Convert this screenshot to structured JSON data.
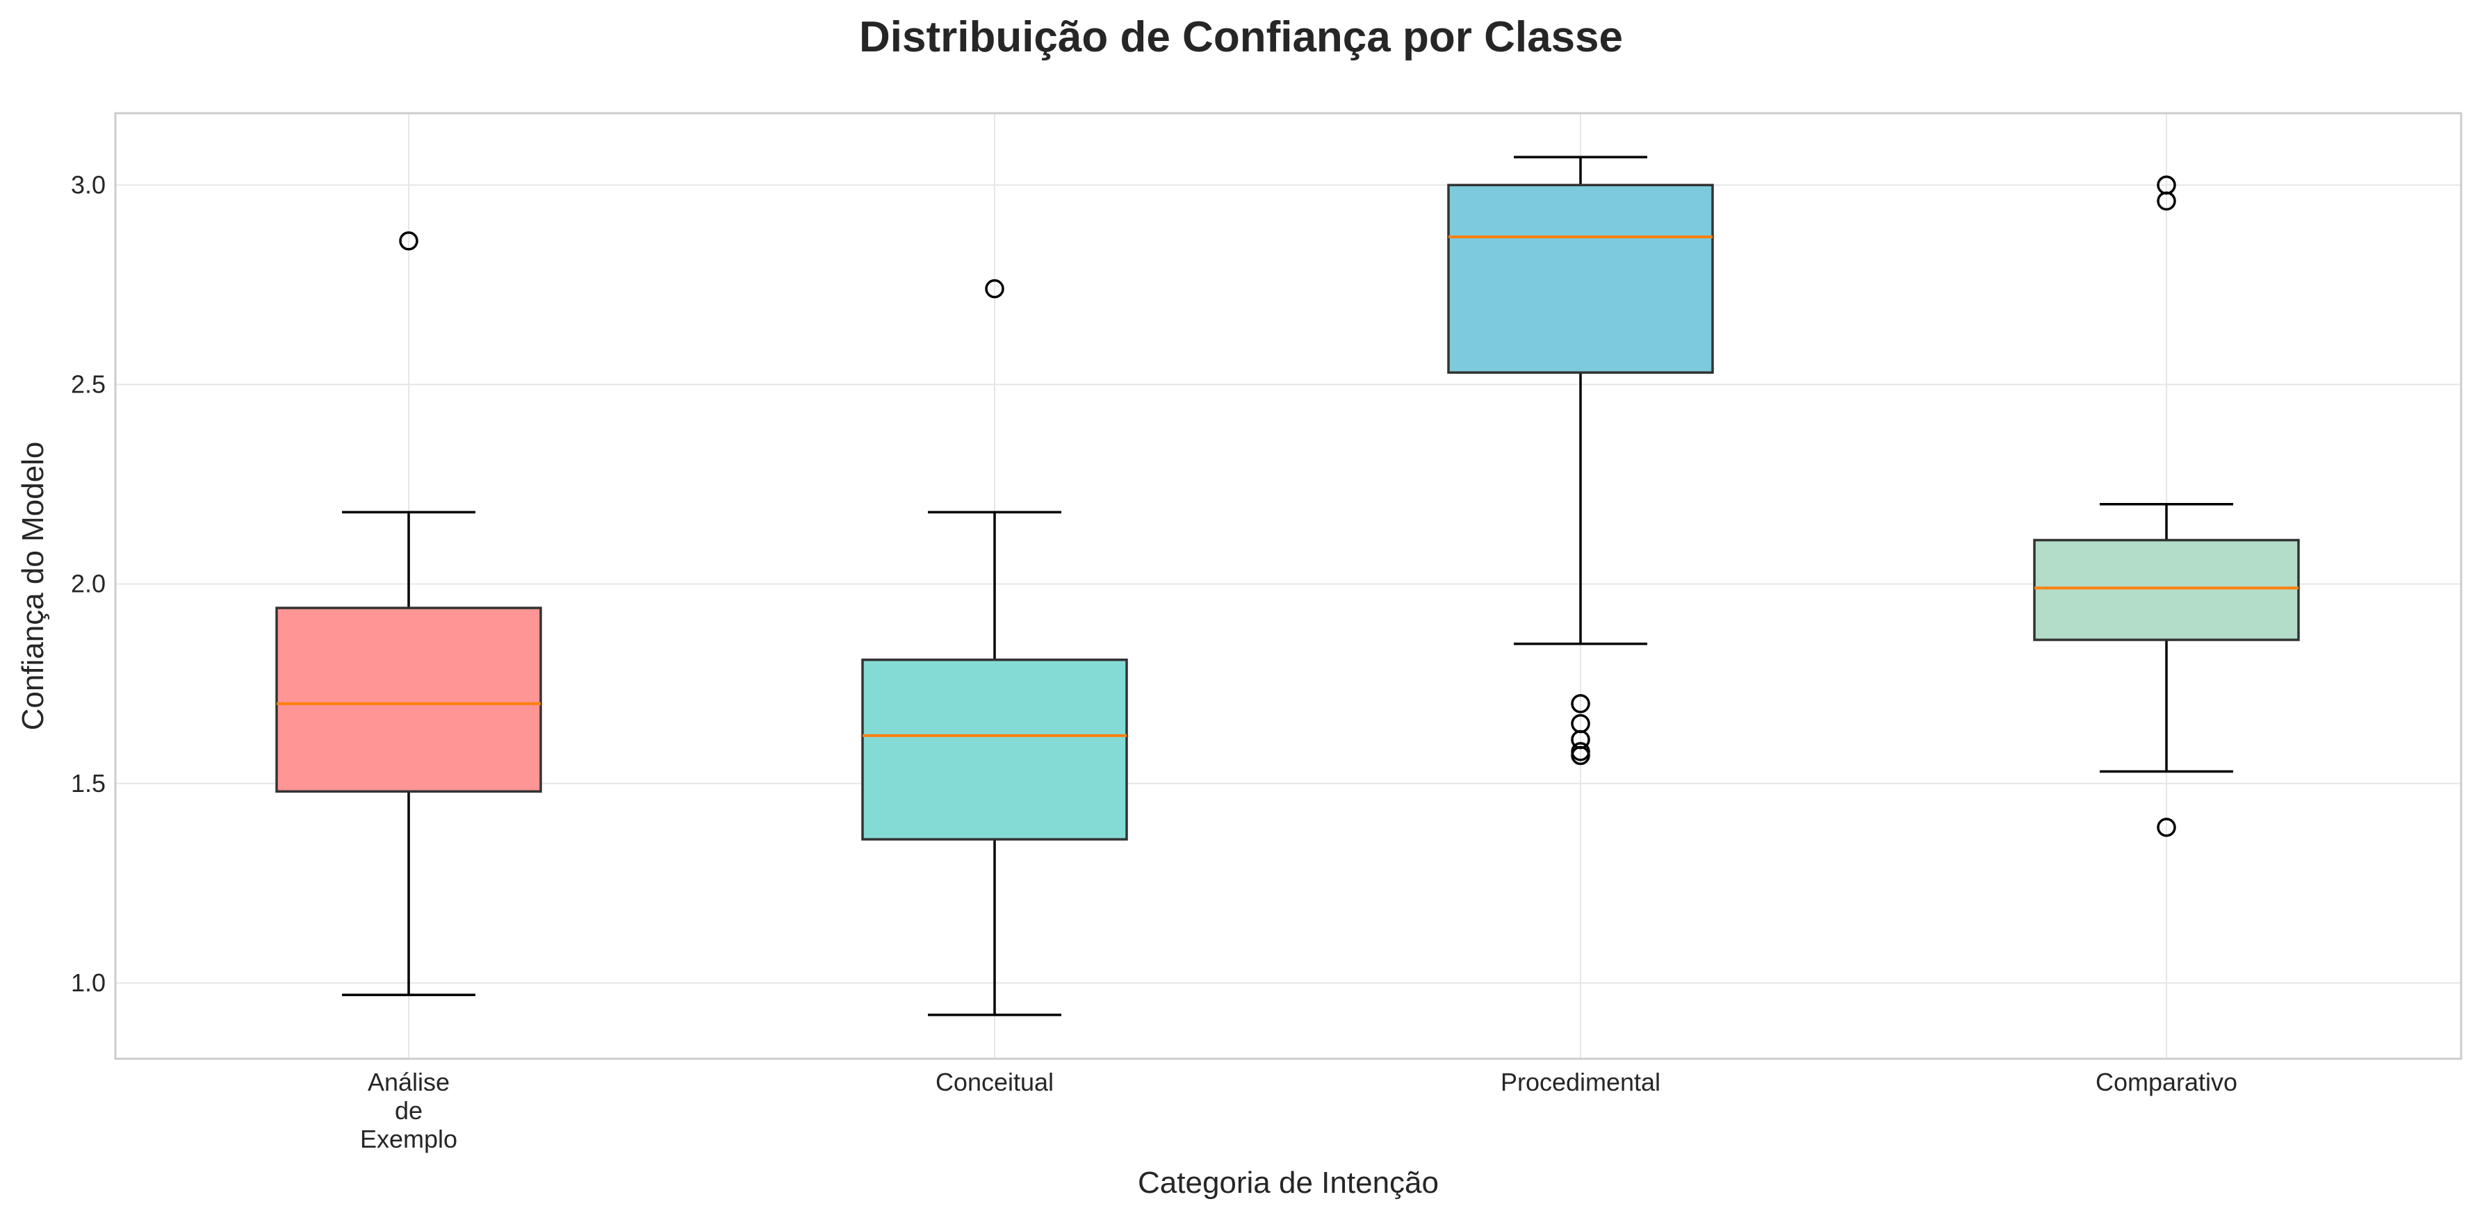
{
  "chart_data": {
    "type": "box",
    "title": "Distribuição de Confiança por Classe",
    "xlabel": "Categoria de Intenção",
    "ylabel": "Confiança do Modelo",
    "ylim": [
      0.81,
      3.18
    ],
    "yticks": [
      "1.0",
      "1.5",
      "2.0",
      "2.5",
      "3.0"
    ],
    "ytick_values": [
      1.0,
      1.5,
      2.0,
      2.5,
      3.0
    ],
    "grid": true,
    "legend": "none",
    "categories": [
      {
        "label_lines": [
          "Análise",
          "de",
          "Exemplo"
        ],
        "color": "#ff9595",
        "q1": 1.48,
        "median": 1.7,
        "q3": 1.94,
        "whisker_low": 0.97,
        "whisker_high": 2.18,
        "outliers": [
          2.86
        ]
      },
      {
        "label_lines": [
          "Conceitual"
        ],
        "color": "#84dbd6",
        "q1": 1.36,
        "median": 1.62,
        "q3": 1.81,
        "whisker_low": 0.92,
        "whisker_high": 2.18,
        "outliers": [
          2.74
        ]
      },
      {
        "label_lines": [
          "Procedimental"
        ],
        "color": "#7ecadd",
        "q1": 2.53,
        "median": 2.87,
        "q3": 3.0,
        "whisker_low": 1.85,
        "whisker_high": 3.07,
        "outliers": [
          1.7,
          1.65,
          1.61,
          1.58,
          1.57
        ]
      },
      {
        "label_lines": [
          "Comparativo"
        ],
        "color": "#b3dcc9",
        "q1": 1.86,
        "median": 1.99,
        "q3": 2.11,
        "whisker_low": 1.53,
        "whisker_high": 2.2,
        "outliers": [
          3.0,
          2.96,
          1.39
        ]
      }
    ],
    "colors": {
      "median": "#ff7f0e",
      "box_edge": "#333333",
      "whisker": "#000000",
      "grid": "#e6e6e6",
      "frame": "#cccccc"
    }
  }
}
